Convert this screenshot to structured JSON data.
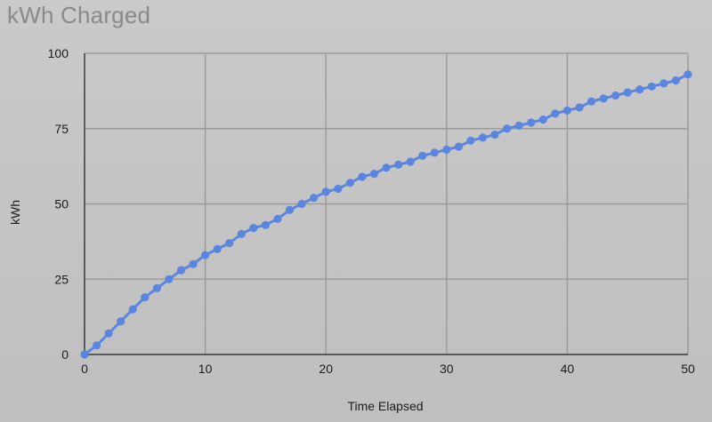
{
  "chart_data": {
    "type": "line",
    "title": "kWh Charged",
    "xlabel": "Time Elapsed",
    "ylabel": "kWh",
    "xlim": [
      0,
      50
    ],
    "ylim": [
      0,
      100
    ],
    "x_ticks": [
      0,
      10,
      20,
      30,
      40,
      50
    ],
    "y_ticks": [
      0,
      25,
      50,
      75,
      100
    ],
    "grid": true,
    "legend": "none",
    "colors": {
      "series": "#5b86df",
      "grid": "#9c9c9c",
      "axis": "#3a3a3a",
      "title": "#8a8a8a"
    },
    "series": [
      {
        "x": [
          0,
          1,
          2,
          3,
          4,
          5,
          6,
          7,
          8,
          9,
          10,
          11,
          12,
          13,
          14,
          15,
          16,
          17,
          18,
          19,
          20,
          21,
          22,
          23,
          24,
          25,
          26,
          27,
          28,
          29,
          30,
          31,
          32,
          33,
          34,
          35,
          36,
          37,
          38,
          39,
          40,
          41,
          42,
          43,
          44,
          45,
          46,
          47,
          48,
          49,
          50
        ],
        "values": [
          0,
          3,
          7,
          11,
          15,
          19,
          22,
          25,
          28,
          30,
          33,
          35,
          37,
          40,
          42,
          43,
          45,
          48,
          50,
          52,
          54,
          55,
          57,
          59,
          60,
          62,
          63,
          64,
          66,
          67,
          68,
          69,
          71,
          72,
          73,
          75,
          76,
          77,
          78,
          80,
          81,
          82,
          84,
          85,
          86,
          87,
          88,
          89,
          90,
          91,
          93
        ]
      }
    ]
  }
}
